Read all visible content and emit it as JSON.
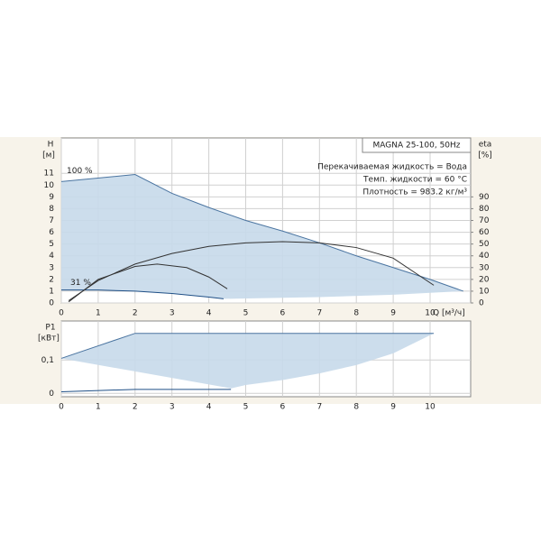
{
  "chart_data": [
    {
      "type": "line",
      "title": "MAGNA 25-100, 50Hz",
      "notes": [
        "Перекачиваемая жидкость = Вода",
        "Темп. жидкости = 60 °C",
        "Плотность = 983.2 кг/м³"
      ],
      "y_label": "H",
      "y_unit": "[м]",
      "y2_label": "eta",
      "y2_unit": "[%]",
      "x_label": "Q [м³/ч]",
      "annotations": [
        "100 %",
        "31 %"
      ],
      "xlim": [
        0,
        11.1
      ],
      "xticks": [
        0,
        1,
        2,
        3,
        4,
        5,
        6,
        7,
        8,
        9,
        10
      ],
      "ylim": [
        0,
        14
      ],
      "yticks": [
        0,
        1,
        2,
        3,
        4,
        5,
        6,
        7,
        8,
        9,
        10,
        11
      ],
      "y2lim": [
        0,
        140
      ],
      "y2ticks": [
        0,
        10,
        20,
        30,
        40,
        50,
        60,
        70,
        80,
        90
      ],
      "grid": true,
      "area_color": "#c6d9ea",
      "series": [
        {
          "color": "#4a74a0",
          "x": [
            0,
            2,
            3,
            4,
            5,
            6,
            7,
            8,
            9,
            10,
            10.9
          ],
          "values": [
            10.3,
            10.9,
            9.3,
            8.1,
            7.0,
            6.1,
            5.1,
            4.0,
            3.0,
            2.0,
            1.0
          ]
        },
        {
          "color": "#1f4f86",
          "x": [
            0,
            1,
            2,
            3,
            4,
            4.4
          ],
          "values": [
            1.1,
            1.1,
            1.0,
            0.8,
            0.5,
            0.35
          ]
        },
        {
          "color": "#333333",
          "axis": "y2",
          "x": [
            0.2,
            1,
            2,
            3,
            4,
            5,
            6,
            7,
            8,
            9,
            10.1
          ],
          "values": [
            2,
            19,
            33,
            42,
            48,
            51,
            52,
            51,
            47,
            38,
            15
          ]
        },
        {
          "color": "#333333",
          "axis": "y2",
          "x": [
            0.2,
            1,
            2,
            2.6,
            3.4,
            4,
            4.5
          ],
          "values": [
            1,
            20,
            31,
            33,
            30,
            22,
            12
          ]
        }
      ],
      "area_lower": {
        "x": [
          10.9,
          9,
          7,
          4.4,
          4,
          3,
          2,
          1,
          0
        ],
        "values": [
          1.0,
          0.7,
          0.5,
          0.35,
          0.5,
          0.8,
          1.0,
          1.1,
          1.1
        ]
      }
    },
    {
      "type": "line",
      "y_label": "P1",
      "y_unit": "[кВт]",
      "xlim": [
        0,
        11.1
      ],
      "xticks": [
        0,
        1,
        2,
        3,
        4,
        5,
        6,
        7,
        8,
        9,
        10
      ],
      "ylim": [
        -0.01,
        0.217
      ],
      "yticks": [
        0,
        {
          "value": 0.1,
          "label": "0,1"
        }
      ],
      "grid": true,
      "area_color": "#c6d9ea",
      "series": [
        {
          "color": "#4a74a0",
          "x": [
            0,
            2,
            10.1
          ],
          "values": [
            0.105,
            0.18,
            0.18
          ]
        },
        {
          "color": "#1f4f86",
          "x": [
            0,
            2,
            4.6
          ],
          "values": [
            0.005,
            0.012,
            0.012
          ]
        }
      ],
      "area_lower": {
        "x": [
          10.1,
          9,
          8,
          7,
          6,
          5,
          4.6
        ],
        "values": [
          0.18,
          0.12,
          0.085,
          0.06,
          0.04,
          0.025,
          0.015
        ]
      }
    }
  ]
}
